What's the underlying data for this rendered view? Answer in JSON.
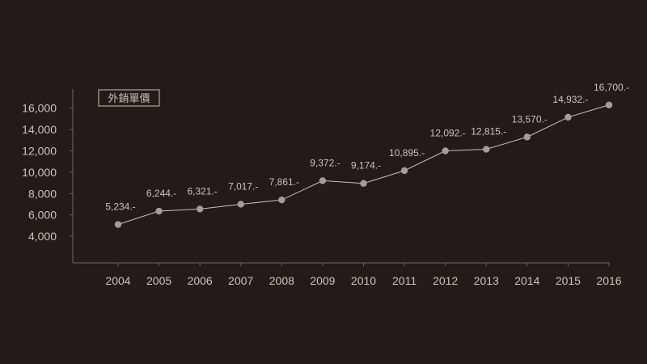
{
  "chart_data": {
    "type": "line",
    "legend": "外銷單價",
    "categories": [
      "2004",
      "2005",
      "2006",
      "2007",
      "2008",
      "2009",
      "2010",
      "2011",
      "2012",
      "2013",
      "2014",
      "2015",
      "2016"
    ],
    "values": [
      5234,
      6244,
      6321,
      7017,
      7861,
      9372,
      9174,
      10895,
      12092,
      12815,
      13570,
      14932,
      16700
    ],
    "point_values": [
      5100,
      6350,
      6550,
      7000,
      7400,
      9200,
      8950,
      10150,
      12000,
      12150,
      13300,
      15150,
      16300
    ],
    "data_labels": [
      "5,234.-",
      "6,244.-",
      "6,321.-",
      "7,017.-",
      "7,861.-",
      "9,372.-",
      "9,174.-",
      "10,895.-",
      "12,092.-",
      "12,815.-",
      "13,570.-",
      "14,932.-",
      "16,700.-"
    ],
    "y_ticks": [
      4000,
      6000,
      8000,
      10000,
      12000,
      14000,
      16000
    ],
    "y_tick_labels": [
      "4,000",
      "6,000",
      "8,000",
      "10,000",
      "12,000",
      "14,000",
      "16,000"
    ],
    "ylim": [
      1500,
      17800
    ],
    "grid": false,
    "legend_position": "top-left",
    "colors": {
      "background": "#231b1a",
      "axis": "#6e6764",
      "line": "#c9c3bf",
      "marker": "#a39e9b",
      "text": "#c9c3bf"
    }
  }
}
